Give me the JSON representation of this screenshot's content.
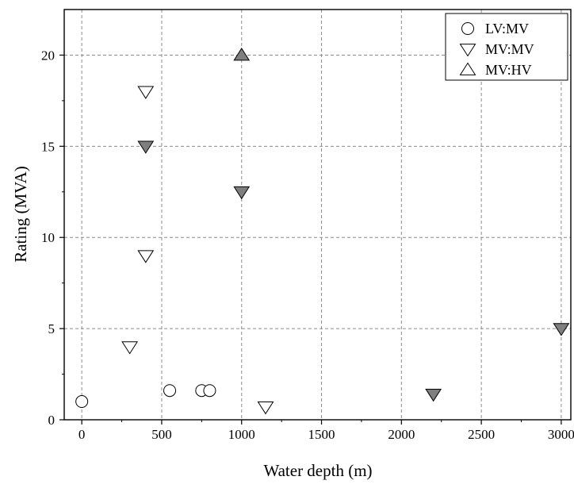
{
  "chart_data": {
    "type": "scatter",
    "title": "",
    "xlabel": "Water depth (m)",
    "ylabel": "Rating (MVA)",
    "xlim": [
      -110,
      3060
    ],
    "ylim": [
      0,
      22.5
    ],
    "xticks": [
      0,
      500,
      1000,
      1500,
      2000,
      2500,
      3000
    ],
    "yticks": [
      0,
      5,
      10,
      15,
      20
    ],
    "grid": true,
    "legend_position": "top-right",
    "colors": {
      "filled_marker": "#7f7f7f",
      "open_marker": "#ffffff",
      "edge": "#000000",
      "grid": "#8c8c8c"
    },
    "series": [
      {
        "name": "LV:MV",
        "marker": "circle",
        "points": [
          {
            "x": 0,
            "y": 1.0,
            "filled": false
          },
          {
            "x": 550,
            "y": 1.6,
            "filled": false
          },
          {
            "x": 750,
            "y": 1.6,
            "filled": false
          },
          {
            "x": 800,
            "y": 1.6,
            "filled": false
          }
        ]
      },
      {
        "name": "MV:MV",
        "marker": "triangle-down",
        "points": [
          {
            "x": 400,
            "y": 18,
            "filled": false
          },
          {
            "x": 400,
            "y": 15,
            "filled": true
          },
          {
            "x": 1000,
            "y": 12.5,
            "filled": true
          },
          {
            "x": 400,
            "y": 9,
            "filled": false
          },
          {
            "x": 300,
            "y": 4,
            "filled": false
          },
          {
            "x": 1150,
            "y": 0.7,
            "filled": false
          },
          {
            "x": 2200,
            "y": 1.4,
            "filled": true
          },
          {
            "x": 3000,
            "y": 5,
            "filled": true
          }
        ]
      },
      {
        "name": "MV:HV",
        "marker": "triangle-up",
        "points": [
          {
            "x": 1000,
            "y": 20,
            "filled": true
          }
        ]
      }
    ]
  }
}
